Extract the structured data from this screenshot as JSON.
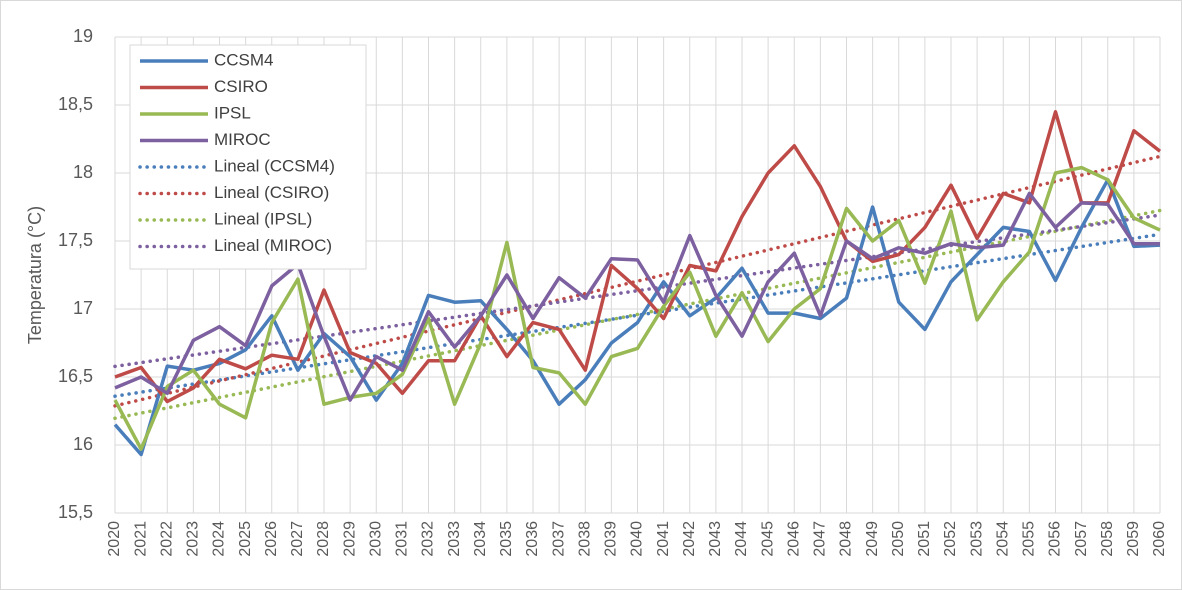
{
  "chart_data": {
    "type": "line",
    "y_label": "Temperatura (°C)",
    "categories": [
      "2020",
      "2021",
      "2022",
      "2023",
      "2024",
      "2025",
      "2026",
      "2027",
      "2028",
      "2029",
      "2030",
      "2031",
      "2032",
      "2033",
      "2034",
      "2035",
      "2036",
      "2037",
      "2038",
      "2039",
      "2040",
      "2041",
      "2042",
      "2043",
      "2044",
      "2045",
      "2046",
      "2047",
      "2048",
      "2049",
      "2050",
      "2051",
      "2052",
      "2053",
      "2054",
      "2055",
      "2056",
      "2057",
      "2058",
      "2059",
      "2060"
    ],
    "series": [
      {
        "name": "CCSM4",
        "color": "#4a7ebb",
        "values": [
          16.15,
          15.93,
          16.58,
          16.55,
          16.6,
          16.7,
          16.95,
          16.55,
          16.82,
          16.65,
          16.33,
          16.6,
          17.1,
          17.05,
          17.06,
          16.85,
          16.62,
          16.3,
          16.48,
          16.75,
          16.9,
          17.2,
          16.95,
          17.08,
          17.3,
          16.97,
          16.97,
          16.93,
          17.08,
          17.75,
          17.05,
          16.85,
          17.2,
          17.4,
          17.6,
          17.57,
          17.21,
          17.6,
          17.95,
          17.46,
          17.47
        ]
      },
      {
        "name": "CSIRO",
        "color": "#be4b48",
        "values": [
          16.5,
          16.57,
          16.32,
          16.42,
          16.63,
          16.56,
          16.66,
          16.63,
          17.14,
          16.68,
          16.6,
          16.38,
          16.62,
          16.62,
          16.95,
          16.65,
          16.9,
          16.85,
          16.55,
          17.32,
          17.15,
          16.93,
          17.32,
          17.28,
          17.68,
          18.0,
          18.2,
          17.9,
          17.5,
          17.35,
          17.4,
          17.6,
          17.91,
          17.52,
          17.85,
          17.78,
          18.45,
          17.78,
          17.78,
          18.31,
          18.16
        ]
      },
      {
        "name": "IPSL",
        "color": "#98b954",
        "values": [
          16.33,
          15.97,
          16.43,
          16.55,
          16.3,
          16.2,
          16.9,
          17.22,
          16.3,
          16.35,
          16.38,
          16.52,
          16.93,
          16.3,
          16.75,
          17.49,
          16.57,
          16.53,
          16.3,
          16.65,
          16.71,
          17.02,
          17.27,
          16.8,
          17.12,
          16.76,
          17.0,
          17.15,
          17.74,
          17.5,
          17.65,
          17.19,
          17.72,
          16.92,
          17.2,
          17.42,
          18.0,
          18.04,
          17.95,
          17.67,
          17.58
        ]
      },
      {
        "name": "MIROC",
        "color": "#7d60a0",
        "values": [
          16.42,
          16.5,
          16.38,
          16.77,
          16.87,
          16.73,
          17.17,
          17.33,
          16.8,
          16.33,
          16.65,
          16.55,
          16.98,
          16.72,
          16.95,
          17.25,
          16.93,
          17.23,
          17.08,
          17.37,
          17.36,
          17.05,
          17.54,
          17.1,
          16.8,
          17.2,
          17.41,
          16.95,
          17.5,
          17.37,
          17.45,
          17.41,
          17.48,
          17.45,
          17.47,
          17.85,
          17.6,
          17.78,
          17.77,
          17.48,
          17.48
        ]
      }
    ],
    "trendlines": [
      {
        "name": "Lineal (CCSM4)",
        "of": 0
      },
      {
        "name": "Lineal (CSIRO)",
        "of": 1
      },
      {
        "name": "Lineal (IPSL)",
        "of": 2
      },
      {
        "name": "Lineal (MIROC)",
        "of": 3
      }
    ],
    "ylim": [
      15.5,
      19
    ],
    "yticks": [
      {
        "value": 15.5,
        "label": "15,5"
      },
      16,
      {
        "value": 16.5,
        "label": "16,5"
      },
      17,
      {
        "value": 17.5,
        "label": "17,5"
      },
      18,
      {
        "value": 18.5,
        "label": "18,5"
      },
      19
    ],
    "grid": true,
    "legend": "top-left"
  }
}
